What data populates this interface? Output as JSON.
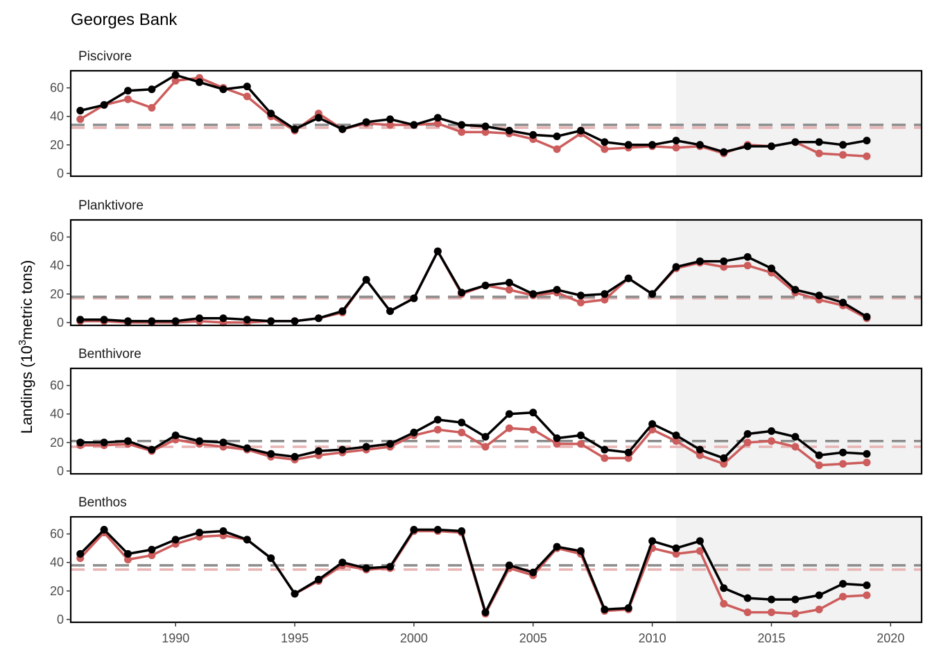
{
  "chart_data": {
    "type": "line",
    "title": "Georges Bank",
    "ylabel_main": "Landings (10",
    "ylabel_sup": "3",
    "ylabel_rest": "metric tons)",
    "xlabel": "",
    "xlim": [
      1985.6,
      2021.3
    ],
    "ylim": [
      -2,
      72
    ],
    "xticks": [
      1990,
      1995,
      2000,
      2005,
      2010,
      2015,
      2020
    ],
    "yticks": [
      0,
      20,
      40,
      60
    ],
    "shaded_start": 2011,
    "colors": {
      "series_black": "#000000",
      "series_red": "#cd5c5c",
      "mean_black": "#8c8c8c",
      "mean_red": "#e8b4b4",
      "shade": "#f2f2f2"
    },
    "x": [
      1986,
      1987,
      1988,
      1989,
      1990,
      1991,
      1992,
      1993,
      1994,
      1995,
      1996,
      1997,
      1998,
      1999,
      2000,
      2001,
      2002,
      2003,
      2004,
      2005,
      2006,
      2007,
      2008,
      2009,
      2010,
      2011,
      2012,
      2013,
      2014,
      2015,
      2016,
      2017,
      2018,
      2019
    ],
    "panels": [
      {
        "label": "Piscivore",
        "mean_black": 34,
        "mean_red": 32,
        "series": [
          {
            "color": "red",
            "values": [
              38,
              48,
              52,
              46,
              65,
              67,
              60,
              54,
              40,
              30,
              42,
              31,
              35,
              34,
              34,
              35,
              29,
              29,
              28,
              24,
              17,
              28,
              17,
              18,
              19,
              18,
              19,
              14,
              20,
              19,
              22,
              14,
              13,
              12
            ]
          },
          {
            "color": "black",
            "values": [
              44,
              48,
              58,
              59,
              69,
              64,
              59,
              61,
              42,
              31,
              39,
              31,
              36,
              38,
              34,
              39,
              34,
              33,
              30,
              27,
              26,
              30,
              22,
              20,
              20,
              23,
              20,
              15,
              19,
              19,
              22,
              22,
              20,
              23
            ]
          }
        ]
      },
      {
        "label": "Planktivore",
        "mean_black": 18,
        "mean_red": 17,
        "series": [
          {
            "color": "red",
            "values": [
              1,
              1,
              0,
              0,
              0,
              1,
              0,
              0,
              1,
              1,
              3,
              7,
              30,
              8,
              17,
              50,
              20,
              26,
              23,
              19,
              21,
              14,
              16,
              31,
              20,
              38,
              42,
              39,
              40,
              35,
              21,
              16,
              12,
              3
            ]
          },
          {
            "color": "black",
            "values": [
              2,
              2,
              1,
              1,
              1,
              3,
              3,
              2,
              1,
              1,
              3,
              8,
              30,
              8,
              17,
              50,
              21,
              26,
              28,
              20,
              23,
              19,
              20,
              31,
              20,
              39,
              43,
              43,
              46,
              38,
              23,
              19,
              14,
              4
            ]
          }
        ]
      },
      {
        "label": "Benthivore",
        "mean_black": 21,
        "mean_red": 17,
        "series": [
          {
            "color": "red",
            "values": [
              18,
              18,
              19,
              14,
              22,
              19,
              17,
              15,
              10,
              8,
              11,
              13,
              15,
              17,
              25,
              29,
              27,
              17,
              30,
              29,
              19,
              19,
              9,
              9,
              29,
              21,
              11,
              5,
              20,
              21,
              17,
              4,
              5,
              6
            ]
          },
          {
            "color": "black",
            "values": [
              20,
              20,
              21,
              15,
              25,
              21,
              20,
              16,
              12,
              10,
              14,
              15,
              17,
              19,
              27,
              36,
              34,
              24,
              40,
              41,
              23,
              25,
              15,
              13,
              33,
              25,
              15,
              9,
              26,
              28,
              24,
              11,
              13,
              12
            ]
          }
        ]
      },
      {
        "label": "Benthos",
        "mean_black": 38,
        "mean_red": 35,
        "series": [
          {
            "color": "red",
            "values": [
              43,
              61,
              42,
              45,
              53,
              58,
              59,
              56,
              43,
              18,
              27,
              38,
              35,
              36,
              62,
              62,
              61,
              4,
              36,
              31,
              50,
              46,
              6,
              7,
              50,
              46,
              48,
              11,
              5,
              5,
              4,
              7,
              16,
              17
            ]
          },
          {
            "color": "black",
            "values": [
              46,
              63,
              46,
              49,
              56,
              61,
              62,
              56,
              43,
              18,
              28,
              40,
              36,
              37,
              63,
              63,
              62,
              5,
              38,
              33,
              51,
              48,
              7,
              8,
              55,
              50,
              55,
              22,
              15,
              14,
              14,
              17,
              25,
              24
            ]
          }
        ]
      }
    ]
  }
}
